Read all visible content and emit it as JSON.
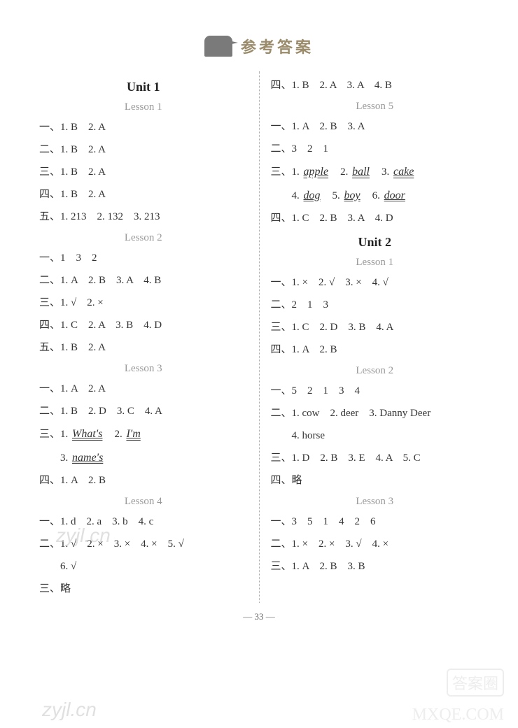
{
  "header": {
    "title": "参考答案"
  },
  "left": {
    "unit1": "Unit 1",
    "l1": {
      "title": "Lesson 1",
      "r1": "一、1. B　2. A",
      "r2": "二、1. B　2. A",
      "r3": "三、1. B　2. A",
      "r4": "四、1. B　2. A",
      "r5": "五、1. 213　2. 132　3. 213"
    },
    "l2": {
      "title": "Lesson 2",
      "r1": "一、1　3　2",
      "r2": "二、1. A　2. B　3. A　4. B",
      "r3": "三、1. √　2. ×",
      "r4": "四、1. C　2. A　3. B　4. D",
      "r5": "五、1. B　2. A"
    },
    "l3": {
      "title": "Lesson 3",
      "r1": "一、1. A　2. A",
      "r2": "二、1. B　2. D　3. C　4. A",
      "r3p": "三、1. ",
      "r3a": "What's",
      "r3m": "　2. ",
      "r3b": "I'm",
      "r4p": "　　3. ",
      "r4a": "name's",
      "r5": "四、1. A　2. B"
    },
    "l4": {
      "title": "Lesson 4",
      "r1": "一、1. d　2. a　3. b　4. c",
      "r2": "二、1. √　2. ×　3. ×　4. ×　5. √",
      "r2b": "　　6. √",
      "r3": "三、略"
    }
  },
  "right": {
    "top": "四、1. B　2. A　3. A　4. B",
    "l5": {
      "title": "Lesson 5",
      "r1": "一、1. A　2. B　3. A",
      "r2": "二、3　2　1",
      "r3p": "三、1. ",
      "r3a": "apple",
      "r3m1": "　2. ",
      "r3b": "ball",
      "r3m2": "　3. ",
      "r3c": "cake",
      "r4p": "　　4. ",
      "r4a": "dog",
      "r4m1": "　5. ",
      "r4b": "boy",
      "r4m2": "　6. ",
      "r4c": "door",
      "r5": "四、1. C　2. B　3. A　4. D"
    },
    "unit2": "Unit 2",
    "u2l1": {
      "title": "Lesson 1",
      "r1": "一、1. ×　2. √　3. ×　4. √",
      "r2": "二、2　1　3",
      "r3": "三、1. C　2. D　3. B　4. A",
      "r4": "四、1. A　2. B"
    },
    "u2l2": {
      "title": "Lesson 2",
      "r1": "一、5　2　1　3　4",
      "r2": "二、1. cow　2. deer　3. Danny Deer",
      "r2b": "　　4. horse",
      "r3": "三、1. D　2. B　3. E　4. A　5. C",
      "r4": "四、略"
    },
    "u2l3": {
      "title": "Lesson 3",
      "r1": "一、3　5　1　4　2　6",
      "r2": "二、1. ×　2. ×　3. √　4. ×",
      "r3": "三、1. A　2. B　3. B"
    }
  },
  "pagenum": "— 33 —",
  "wm1": "zyjl.cn",
  "wm2": "zyjl.cn",
  "wm3": "MXQE.COM",
  "wm4": "答案圈"
}
